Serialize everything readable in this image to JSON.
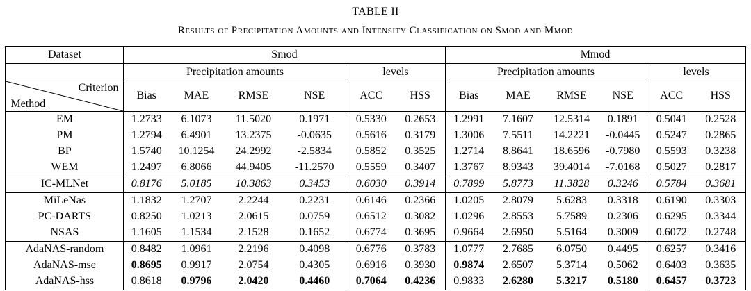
{
  "caption": {
    "title": "TABLE II",
    "subtitle": "Results of Precipitation Amounts and Intensity Classification on Smod and Mmod"
  },
  "table": {
    "corner": {
      "dataset": "Dataset",
      "criterion": "Criterion",
      "method": "Method"
    },
    "dataset_groups": [
      "Smod",
      "Mmod"
    ],
    "subheaders": {
      "precip": "Precipitation amounts",
      "levels": "levels"
    },
    "metrics": [
      "Bias",
      "MAE",
      "RMSE",
      "NSE",
      "ACC",
      "HSS"
    ],
    "rows": [
      {
        "method": "EM",
        "section_start": false,
        "italic": false,
        "bold": [],
        "values": [
          "1.2733",
          "6.1073",
          "11.5020",
          "0.1971",
          "0.5330",
          "0.2653",
          "1.2991",
          "7.1607",
          "12.5314",
          "0.1891",
          "0.5041",
          "0.2528"
        ]
      },
      {
        "method": "PM",
        "section_start": false,
        "italic": false,
        "bold": [],
        "values": [
          "1.2794",
          "6.4901",
          "13.2375",
          "-0.0635",
          "0.5616",
          "0.3179",
          "1.3006",
          "7.5511",
          "14.2221",
          "-0.0445",
          "0.5247",
          "0.2865"
        ]
      },
      {
        "method": "BP",
        "section_start": false,
        "italic": false,
        "bold": [],
        "values": [
          "1.5740",
          "10.1254",
          "24.2992",
          "-2.5834",
          "0.5852",
          "0.3525",
          "1.2714",
          "8.8641",
          "18.6596",
          "-0.7980",
          "0.5593",
          "0.3238"
        ]
      },
      {
        "method": "WEM",
        "section_start": false,
        "italic": false,
        "bold": [],
        "values": [
          "1.2497",
          "6.8066",
          "44.9405",
          "-11.2570",
          "0.5559",
          "0.3407",
          "1.3767",
          "8.9343",
          "39.4014",
          "-7.0168",
          "0.5027",
          "0.2817"
        ]
      },
      {
        "method": "IC-MLNet",
        "section_start": true,
        "italic": true,
        "bold": [],
        "values": [
          "0.8176",
          "5.0185",
          "10.3863",
          "0.3453",
          "0.6030",
          "0.3914",
          "0.7899",
          "5.8773",
          "11.3828",
          "0.3246",
          "0.5784",
          "0.3681"
        ]
      },
      {
        "method": "MiLeNas",
        "section_start": true,
        "italic": false,
        "bold": [],
        "values": [
          "1.1832",
          "1.2707",
          "2.2244",
          "0.2231",
          "0.6146",
          "0.2366",
          "1.0205",
          "2.8079",
          "5.6283",
          "0.3318",
          "0.6190",
          "0.3303"
        ]
      },
      {
        "method": "PC-DARTS",
        "section_start": false,
        "italic": false,
        "bold": [],
        "values": [
          "0.8250",
          "1.0213",
          "2.0615",
          "0.0759",
          "0.6512",
          "0.3082",
          "1.0296",
          "2.8553",
          "5.7589",
          "0.2306",
          "0.6295",
          "0.3344"
        ]
      },
      {
        "method": "NSAS",
        "section_start": false,
        "italic": false,
        "bold": [],
        "values": [
          "1.1605",
          "1.1534",
          "2.1528",
          "0.1652",
          "0.6774",
          "0.3695",
          "0.9664",
          "2.6950",
          "5.5164",
          "0.3009",
          "0.6072",
          "0.2748"
        ]
      },
      {
        "method": "AdaNAS-random",
        "section_start": true,
        "italic": false,
        "bold": [],
        "values": [
          "0.8482",
          "1.0961",
          "2.2196",
          "0.4098",
          "0.6776",
          "0.3783",
          "1.0777",
          "2.7685",
          "6.0750",
          "0.4495",
          "0.6257",
          "0.3416"
        ]
      },
      {
        "method": "AdaNAS-mse",
        "section_start": false,
        "italic": false,
        "bold": [
          0,
          6
        ],
        "values": [
          "0.8695",
          "0.9917",
          "2.0754",
          "0.4305",
          "0.6916",
          "0.3930",
          "0.9874",
          "2.6507",
          "5.3714",
          "0.5062",
          "0.6403",
          "0.3635"
        ]
      },
      {
        "method": "AdaNAS-hss",
        "section_start": false,
        "italic": false,
        "bold": [
          1,
          2,
          3,
          4,
          5,
          7,
          8,
          9,
          10,
          11
        ],
        "values": [
          "0.8618",
          "0.9796",
          "2.0420",
          "0.4460",
          "0.7064",
          "0.4236",
          "0.9833",
          "2.6280",
          "5.3217",
          "0.5180",
          "0.6457",
          "0.3723"
        ]
      }
    ]
  }
}
